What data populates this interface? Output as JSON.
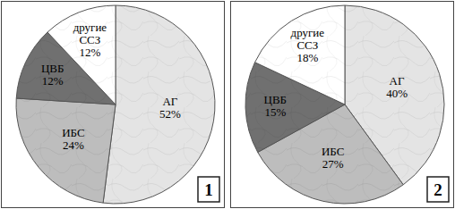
{
  "chart_data": [
    {
      "type": "pie",
      "title": "1",
      "categories": [
        "АГ",
        "ИБС",
        "ЦВБ",
        "другие ССЗ"
      ],
      "values": [
        52,
        24,
        12,
        12
      ],
      "value_labels": [
        "52%",
        "24%",
        "12%",
        "12%"
      ],
      "colors": [
        "#e4e4e4",
        "#bdbdbd",
        "#707070",
        "#ffffff"
      ],
      "data_labels": true
    },
    {
      "type": "pie",
      "title": "2",
      "categories": [
        "АГ",
        "ИБС",
        "ЦВБ",
        "другие ССЗ"
      ],
      "values": [
        40,
        27,
        15,
        18
      ],
      "value_labels": [
        "40%",
        "27%",
        "15%",
        "18%"
      ],
      "colors": [
        "#e4e4e4",
        "#bdbdbd",
        "#707070",
        "#ffffff"
      ],
      "data_labels": true
    }
  ]
}
